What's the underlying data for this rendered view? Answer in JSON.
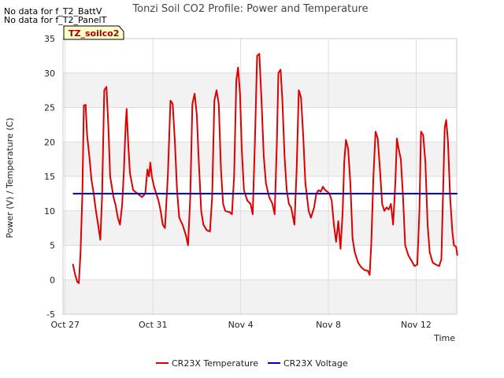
{
  "notes": [
    "No data for f_T2_BattV",
    "No data for f_T2_PanelT"
  ],
  "badge": "TZ_soilco2",
  "chart_data": {
    "type": "line",
    "title": "Tonzi Soil CO2 Profile: Power and Temperature",
    "xlabel": "Time",
    "ylabel": "Power (V) / Temperature (C)",
    "xlim": [
      -0.1,
      17.85
    ],
    "ylim": [
      -5,
      35
    ],
    "y_ticks": [
      -5,
      0,
      5,
      10,
      15,
      20,
      25,
      30,
      35
    ],
    "x_ticks": [
      {
        "value": 0,
        "label": "Oct 27"
      },
      {
        "value": 4,
        "label": "Oct 31"
      },
      {
        "value": 8,
        "label": "Nov 4"
      },
      {
        "value": 12,
        "label": "Nov 8"
      },
      {
        "value": 16,
        "label": "Nov 12"
      }
    ],
    "band_color": "#f2f2f2",
    "grid_color": "#dcdcdc",
    "legend_position": "bottom-center",
    "series": [
      {
        "name": "CR23X Temperature",
        "color": "#dd0000",
        "points": [
          [
            0.35,
            2.3
          ],
          [
            0.45,
            0.8
          ],
          [
            0.55,
            -0.3
          ],
          [
            0.62,
            -0.5
          ],
          [
            0.7,
            4.0
          ],
          [
            0.78,
            12.0
          ],
          [
            0.85,
            25.3
          ],
          [
            0.93,
            25.4
          ],
          [
            1.0,
            21.0
          ],
          [
            1.1,
            18.0
          ],
          [
            1.2,
            14.5
          ],
          [
            1.3,
            12.5
          ],
          [
            1.4,
            10.0
          ],
          [
            1.5,
            8.0
          ],
          [
            1.6,
            5.8
          ],
          [
            1.68,
            12.0
          ],
          [
            1.78,
            27.5
          ],
          [
            1.88,
            28.0
          ],
          [
            1.97,
            22.0
          ],
          [
            2.05,
            15.0
          ],
          [
            2.2,
            12.0
          ],
          [
            2.3,
            10.8
          ],
          [
            2.4,
            9.0
          ],
          [
            2.5,
            8.0
          ],
          [
            2.6,
            11.0
          ],
          [
            2.68,
            16.0
          ],
          [
            2.75,
            22.0
          ],
          [
            2.8,
            24.8
          ],
          [
            2.87,
            20.0
          ],
          [
            2.95,
            15.5
          ],
          [
            3.1,
            13.0
          ],
          [
            3.3,
            12.5
          ],
          [
            3.5,
            12.0
          ],
          [
            3.65,
            12.5
          ],
          [
            3.75,
            16.0
          ],
          [
            3.82,
            15.0
          ],
          [
            3.88,
            17.0
          ],
          [
            3.95,
            15.0
          ],
          [
            4.05,
            13.5
          ],
          [
            4.15,
            12.5
          ],
          [
            4.25,
            11.5
          ],
          [
            4.35,
            10.0
          ],
          [
            4.45,
            8.0
          ],
          [
            4.55,
            7.5
          ],
          [
            4.68,
            15.0
          ],
          [
            4.8,
            26.0
          ],
          [
            4.9,
            25.5
          ],
          [
            5.0,
            20.0
          ],
          [
            5.1,
            13.0
          ],
          [
            5.2,
            9.0
          ],
          [
            5.35,
            8.0
          ],
          [
            5.5,
            6.5
          ],
          [
            5.6,
            5.0
          ],
          [
            5.7,
            12.0
          ],
          [
            5.8,
            25.5
          ],
          [
            5.9,
            27.0
          ],
          [
            6.0,
            24.0
          ],
          [
            6.08,
            18.0
          ],
          [
            6.2,
            10.0
          ],
          [
            6.3,
            8.0
          ],
          [
            6.45,
            7.2
          ],
          [
            6.6,
            7.0
          ],
          [
            6.7,
            12.0
          ],
          [
            6.8,
            26.0
          ],
          [
            6.9,
            27.5
          ],
          [
            7.0,
            25.5
          ],
          [
            7.1,
            16.0
          ],
          [
            7.2,
            11.0
          ],
          [
            7.3,
            10.0
          ],
          [
            7.5,
            9.8
          ],
          [
            7.6,
            9.5
          ],
          [
            7.7,
            15.0
          ],
          [
            7.8,
            29.0
          ],
          [
            7.88,
            30.8
          ],
          [
            7.97,
            27.0
          ],
          [
            8.05,
            19.0
          ],
          [
            8.15,
            13.0
          ],
          [
            8.3,
            11.5
          ],
          [
            8.45,
            11.0
          ],
          [
            8.55,
            9.5
          ],
          [
            8.65,
            20.0
          ],
          [
            8.75,
            32.5
          ],
          [
            8.85,
            32.8
          ],
          [
            8.95,
            26.0
          ],
          [
            9.05,
            18.0
          ],
          [
            9.15,
            14.0
          ],
          [
            9.3,
            12.0
          ],
          [
            9.45,
            11.0
          ],
          [
            9.55,
            9.5
          ],
          [
            9.65,
            20.0
          ],
          [
            9.72,
            30.0
          ],
          [
            9.82,
            30.5
          ],
          [
            9.9,
            26.0
          ],
          [
            10.0,
            18.0
          ],
          [
            10.1,
            13.0
          ],
          [
            10.2,
            11.0
          ],
          [
            10.3,
            10.5
          ],
          [
            10.45,
            8.0
          ],
          [
            10.55,
            16.0
          ],
          [
            10.65,
            27.5
          ],
          [
            10.75,
            26.5
          ],
          [
            10.85,
            21.0
          ],
          [
            10.95,
            14.0
          ],
          [
            11.1,
            10.0
          ],
          [
            11.2,
            9.0
          ],
          [
            11.35,
            10.5
          ],
          [
            11.45,
            12.5
          ],
          [
            11.55,
            13.0
          ],
          [
            11.65,
            12.8
          ],
          [
            11.75,
            13.5
          ],
          [
            11.85,
            13.0
          ],
          [
            11.95,
            12.8
          ],
          [
            12.05,
            12.5
          ],
          [
            12.15,
            11.5
          ],
          [
            12.25,
            8.0
          ],
          [
            12.35,
            5.5
          ],
          [
            12.45,
            8.5
          ],
          [
            12.55,
            4.5
          ],
          [
            12.65,
            10.0
          ],
          [
            12.72,
            17.0
          ],
          [
            12.8,
            20.3
          ],
          [
            12.9,
            19.0
          ],
          [
            13.0,
            14.0
          ],
          [
            13.1,
            6.0
          ],
          [
            13.2,
            4.0
          ],
          [
            13.35,
            2.5
          ],
          [
            13.5,
            1.8
          ],
          [
            13.65,
            1.4
          ],
          [
            13.8,
            1.3
          ],
          [
            13.88,
            0.7
          ],
          [
            13.95,
            5.0
          ],
          [
            14.05,
            15.0
          ],
          [
            14.15,
            21.5
          ],
          [
            14.25,
            20.5
          ],
          [
            14.35,
            16.0
          ],
          [
            14.45,
            11.0
          ],
          [
            14.55,
            10.0
          ],
          [
            14.65,
            10.5
          ],
          [
            14.75,
            10.2
          ],
          [
            14.85,
            11.0
          ],
          [
            14.95,
            8.0
          ],
          [
            15.05,
            14.0
          ],
          [
            15.12,
            20.5
          ],
          [
            15.2,
            19.0
          ],
          [
            15.3,
            17.5
          ],
          [
            15.4,
            12.0
          ],
          [
            15.5,
            5.0
          ],
          [
            15.65,
            3.5
          ],
          [
            15.8,
            2.7
          ],
          [
            15.92,
            2.0
          ],
          [
            16.05,
            2.2
          ],
          [
            16.15,
            10.0
          ],
          [
            16.22,
            21.5
          ],
          [
            16.32,
            21.0
          ],
          [
            16.42,
            17.0
          ],
          [
            16.52,
            8.0
          ],
          [
            16.62,
            4.0
          ],
          [
            16.75,
            2.5
          ],
          [
            16.9,
            2.2
          ],
          [
            17.05,
            2.0
          ],
          [
            17.15,
            3.0
          ],
          [
            17.22,
            12.0
          ],
          [
            17.3,
            22.0
          ],
          [
            17.37,
            23.2
          ],
          [
            17.45,
            20.0
          ],
          [
            17.55,
            12.0
          ],
          [
            17.65,
            7.0
          ],
          [
            17.72,
            5.0
          ],
          [
            17.82,
            4.8
          ],
          [
            17.88,
            3.5
          ]
        ]
      },
      {
        "name": "CR23X Voltage",
        "color": "#0000bb",
        "points": [
          [
            0.35,
            12.5
          ],
          [
            17.88,
            12.5
          ]
        ]
      }
    ]
  }
}
